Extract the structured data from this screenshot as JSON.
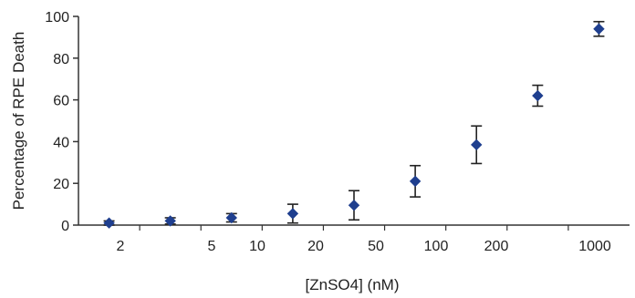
{
  "chart_data": {
    "type": "scatter",
    "xlabel": "[ZnSO4] (nM)",
    "ylabel": "Percentage of RPE Death",
    "ylim": [
      0,
      100
    ],
    "yticks": [
      0,
      20,
      40,
      60,
      80,
      100
    ],
    "xtick_labels": [
      "2",
      "5",
      "10",
      "20",
      "50",
      "100",
      "200",
      "1000"
    ],
    "grid": false,
    "legend": "none",
    "series": [
      {
        "marker": "diamond",
        "color": "#1f3f8f",
        "points": [
          {
            "x": "1",
            "y": 1,
            "err": 1
          },
          {
            "x": "2",
            "y": 2,
            "err": 1.5
          },
          {
            "x": "5",
            "y": 3.5,
            "err": 2
          },
          {
            "x": "10",
            "y": 5.5,
            "err": 4.5
          },
          {
            "x": "20",
            "y": 9.5,
            "err": 7
          },
          {
            "x": "50",
            "y": 21,
            "err": 7.5
          },
          {
            "x": "100",
            "y": 38.5,
            "err": 9
          },
          {
            "x": "200",
            "y": 62,
            "err": 5
          },
          {
            "x": "1000",
            "y": 94,
            "err": 3.5
          }
        ]
      }
    ],
    "colors": {
      "marker": "#1f3f8f",
      "errorbar": "#222222",
      "axis": "#333333"
    }
  }
}
